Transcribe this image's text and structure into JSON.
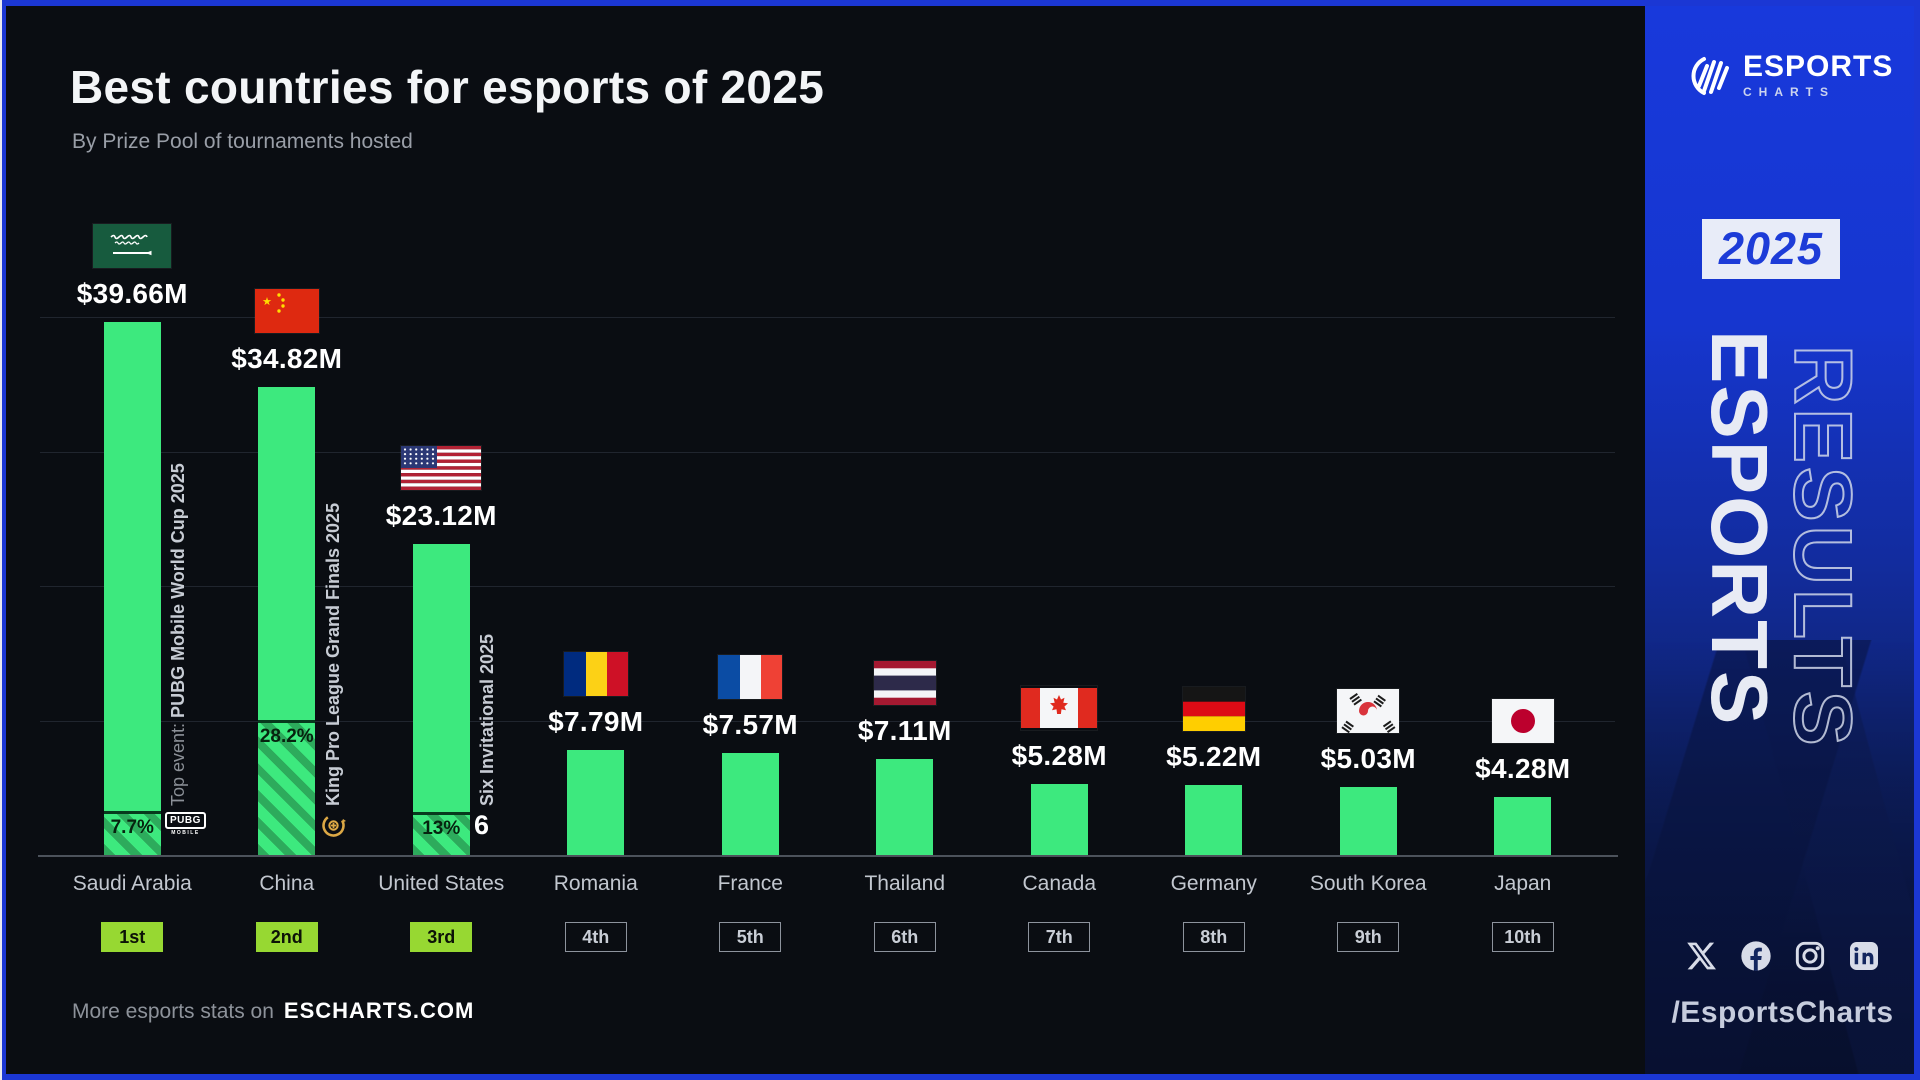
{
  "title": "Best countries for esports of 2025",
  "subtitle": "By Prize Pool of tournaments hosted",
  "footer": {
    "prefix": "More esports stats on",
    "site": "ESCHARTS.COM"
  },
  "sidebar": {
    "brand_name": "ESPORTS",
    "brand_sub": "CHARTS",
    "year_badge": "2025",
    "vertical_solid": "ESPORTS",
    "vertical_outline": "RESULTS",
    "social_icons": [
      "x",
      "facebook",
      "instagram",
      "linkedin"
    ],
    "handle": "/EsportsCharts"
  },
  "colors": {
    "background": "#0a0d12",
    "frame_blue": "#1b37d4",
    "bar_green": "#3de97e",
    "hatch_dark_green": "#2dab5c",
    "rank_lime": "#97d832",
    "sidebar_blue_top": "#1839dc",
    "sidebar_navy_bottom": "#0b1538"
  },
  "chart_data": {
    "type": "bar",
    "title": "Best countries for esports of 2025",
    "subtitle": "By Prize Pool of tournaments hosted",
    "unit": "USD millions",
    "ylim": [
      0,
      40
    ],
    "gridline_values": [
      10,
      20,
      30,
      40
    ],
    "grid": "horizontal, subtle; no y-axis tick labels",
    "legend": "none",
    "categories": [
      "Saudi Arabia",
      "China",
      "United States",
      "Romania",
      "France",
      "Thailand",
      "Canada",
      "Germany",
      "South Korea",
      "Japan"
    ],
    "values": [
      39.66,
      34.82,
      23.12,
      7.79,
      7.57,
      7.11,
      5.28,
      5.22,
      5.03,
      4.28
    ],
    "value_labels": [
      "$39.66M",
      "$34.82M",
      "$23.12M",
      "$7.79M",
      "$7.57M",
      "$7.11M",
      "$5.28M",
      "$5.22M",
      "$5.03M",
      "$4.28M"
    ],
    "ranks": [
      "1st",
      "2nd",
      "3rd",
      "4th",
      "5th",
      "6th",
      "7th",
      "8th",
      "9th",
      "10th"
    ],
    "details": [
      {
        "name": "Saudi Arabia",
        "flag": "saudi-arabia",
        "flag_w": 78,
        "value": 39.66,
        "label": "$39.66M",
        "rank": "1st",
        "rank_style": "filled",
        "event_share_label": "7.7%",
        "event_share_pct": 7.7,
        "event_prefix": "Top event: ",
        "event_name": "PUBG Mobile World Cup 2025",
        "event_logo": "pubg-mobile"
      },
      {
        "name": "China",
        "flag": "china",
        "flag_w": 64,
        "value": 34.82,
        "label": "$34.82M",
        "rank": "2nd",
        "rank_style": "filled",
        "event_share_label": "28.2%",
        "event_share_pct": 28.2,
        "event_prefix": "",
        "event_name": "King Pro League Grand Finals 2025",
        "event_logo": "king-pro-league"
      },
      {
        "name": "United States",
        "flag": "united-states",
        "flag_w": 80,
        "value": 23.12,
        "label": "$23.12M",
        "rank": "3rd",
        "rank_style": "filled",
        "event_share_label": "13%",
        "event_share_pct": 13,
        "event_prefix": "",
        "event_name": "Six Invitational 2025",
        "event_logo": "rainbow-six"
      },
      {
        "name": "Romania",
        "flag": "romania",
        "flag_w": 64,
        "value": 7.79,
        "label": "$7.79M",
        "rank": "4th",
        "rank_style": "outline"
      },
      {
        "name": "France",
        "flag": "france",
        "flag_w": 64,
        "value": 7.57,
        "label": "$7.57M",
        "rank": "5th",
        "rank_style": "outline"
      },
      {
        "name": "Thailand",
        "flag": "thailand",
        "flag_w": 62,
        "value": 7.11,
        "label": "$7.11M",
        "rank": "6th",
        "rank_style": "outline"
      },
      {
        "name": "Canada",
        "flag": "canada",
        "flag_w": 76,
        "value": 5.28,
        "label": "$5.28M",
        "rank": "7th",
        "rank_style": "outline"
      },
      {
        "name": "Germany",
        "flag": "germany",
        "flag_w": 62,
        "value": 5.22,
        "label": "$5.22M",
        "rank": "8th",
        "rank_style": "outline"
      },
      {
        "name": "South Korea",
        "flag": "south-korea",
        "flag_w": 62,
        "value": 5.03,
        "label": "$5.03M",
        "rank": "9th",
        "rank_style": "outline"
      },
      {
        "name": "Japan",
        "flag": "japan",
        "flag_w": 62,
        "value": 4.28,
        "label": "$4.28M",
        "rank": "10th",
        "rank_style": "outline"
      }
    ]
  }
}
